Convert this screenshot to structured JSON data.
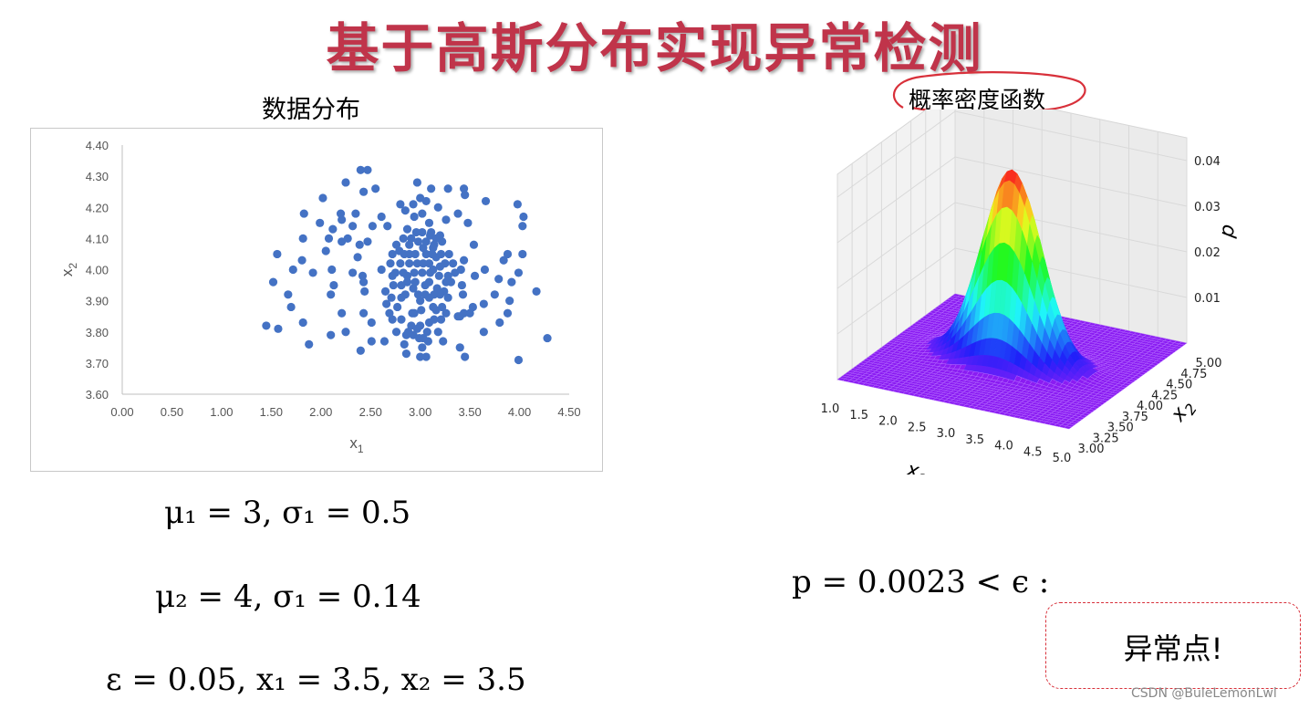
{
  "slide": {
    "title": "基于高斯分布实现异常检测",
    "scatter_caption": "数据分布",
    "pdf_caption": "概率密度函数",
    "formulas": {
      "params_1": "μ₁ = 3, σ₁ = 0.5",
      "params_2": "μ₂ = 4, σ₁ = 0.14",
      "epsilon_point": "ε = 0.05, x₁ = 3.5, x₂ = 3.5",
      "result": "p = 0.0023 < ϵ :"
    },
    "verdict": "异常点!",
    "watermark": "CSDN @BuleLemonLwl",
    "colors": {
      "title": "#c0344a",
      "points": "#4472c4",
      "verdict_border": "#d8303a"
    }
  },
  "chart_data": [
    {
      "type": "scatter",
      "title": "数据分布",
      "xlabel": "x1",
      "ylabel": "x2",
      "xlim": [
        0,
        4.5
      ],
      "ylim": [
        3.6,
        4.4
      ],
      "xticks": [
        "0.00",
        "0.50",
        "1.00",
        "1.50",
        "2.00",
        "2.50",
        "3.00",
        "3.50",
        "4.00",
        "4.50"
      ],
      "yticks": [
        "3.60",
        "3.70",
        "3.80",
        "3.90",
        "4.00",
        "4.10",
        "4.20",
        "4.30",
        "4.40"
      ],
      "grid": false,
      "series": [
        {
          "color": "#4472c4",
          "points": [
            [
              2.4,
              4.32
            ],
            [
              2.47,
              4.32
            ],
            [
              2.25,
              4.28
            ],
            [
              2.97,
              4.28
            ],
            [
              3.11,
              4.26
            ],
            [
              3.28,
              4.26
            ],
            [
              3.44,
              4.26
            ],
            [
              2.43,
              4.25
            ],
            [
              2.55,
              4.26
            ],
            [
              2.02,
              4.23
            ],
            [
              3.0,
              4.23
            ],
            [
              3.06,
              4.22
            ],
            [
              2.93,
              4.21
            ],
            [
              3.45,
              4.24
            ],
            [
              3.66,
              4.22
            ],
            [
              3.98,
              4.21
            ],
            [
              4.04,
              4.17
            ],
            [
              4.03,
              4.14
            ],
            [
              2.8,
              4.21
            ],
            [
              2.85,
              4.19
            ],
            [
              3.18,
              4.2
            ],
            [
              3.38,
              4.18
            ],
            [
              1.83,
              4.18
            ],
            [
              2.2,
              4.18
            ],
            [
              2.21,
              4.16
            ],
            [
              2.35,
              4.18
            ],
            [
              2.61,
              4.17
            ],
            [
              3.02,
              4.18
            ],
            [
              2.67,
              4.14
            ],
            [
              3.26,
              4.16
            ],
            [
              3.48,
              4.15
            ],
            [
              1.99,
              4.15
            ],
            [
              2.12,
              4.13
            ],
            [
              2.32,
              4.14
            ],
            [
              2.94,
              4.17
            ],
            [
              3.09,
              4.15
            ],
            [
              1.82,
              4.1
            ],
            [
              2.08,
              4.1
            ],
            [
              2.21,
              4.09
            ],
            [
              2.27,
              4.1
            ],
            [
              2.52,
              4.14
            ],
            [
              2.87,
              4.13
            ],
            [
              3.02,
              4.12
            ],
            [
              2.98,
              4.09
            ],
            [
              3.1,
              4.11
            ],
            [
              3.2,
              4.11
            ],
            [
              3.22,
              4.09
            ],
            [
              3.54,
              4.08
            ],
            [
              1.56,
              4.05
            ],
            [
              2.39,
              4.08
            ],
            [
              2.47,
              4.09
            ],
            [
              2.83,
              4.1
            ],
            [
              2.91,
              4.1
            ],
            [
              3.16,
              4.1
            ],
            [
              2.05,
              4.06
            ],
            [
              2.37,
              4.04
            ],
            [
              3.03,
              4.07
            ],
            [
              3.13,
              4.07
            ],
            [
              3.88,
              4.05
            ],
            [
              4.03,
              4.05
            ],
            [
              1.72,
              4.0
            ],
            [
              1.81,
              4.03
            ],
            [
              2.11,
              4.0
            ],
            [
              2.79,
              4.06
            ],
            [
              2.89,
              4.05
            ],
            [
              3.12,
              4.05
            ],
            [
              3.16,
              4.04
            ],
            [
              3.29,
              4.05
            ],
            [
              3.44,
              4.03
            ],
            [
              3.84,
              4.03
            ],
            [
              1.92,
              3.99
            ],
            [
              2.32,
              3.99
            ],
            [
              2.61,
              4.0
            ],
            [
              2.89,
              4.02
            ],
            [
              3.03,
              4.02
            ],
            [
              3.13,
              4.0
            ],
            [
              3.2,
              4.01
            ],
            [
              3.41,
              4.0
            ],
            [
              3.65,
              4.0
            ],
            [
              3.99,
              3.99
            ],
            [
              1.52,
              3.96
            ],
            [
              2.42,
              3.98
            ],
            [
              2.72,
              3.98
            ],
            [
              2.87,
              3.98
            ],
            [
              3.1,
              3.99
            ],
            [
              3.28,
              3.98
            ],
            [
              3.31,
              3.96
            ],
            [
              3.55,
              3.98
            ],
            [
              3.79,
              3.97
            ],
            [
              2.13,
              3.95
            ],
            [
              2.43,
              3.96
            ],
            [
              2.87,
              3.96
            ],
            [
              3.05,
              3.95
            ],
            [
              3.17,
              3.94
            ],
            [
              3.2,
              3.92
            ],
            [
              3.42,
              3.95
            ],
            [
              3.92,
              3.96
            ],
            [
              1.67,
              3.92
            ],
            [
              2.1,
              3.92
            ],
            [
              2.44,
              3.93
            ],
            [
              2.65,
              3.93
            ],
            [
              2.93,
              3.94
            ],
            [
              3.05,
              3.92
            ],
            [
              3.09,
              3.91
            ],
            [
              3.28,
              3.91
            ],
            [
              3.43,
              3.92
            ],
            [
              3.75,
              3.92
            ],
            [
              3.9,
              3.9
            ],
            [
              4.17,
              3.93
            ],
            [
              1.7,
              3.88
            ],
            [
              2.81,
              3.91
            ],
            [
              3.0,
              3.9
            ],
            [
              3.13,
              3.88
            ],
            [
              3.22,
              3.88
            ],
            [
              3.53,
              3.88
            ],
            [
              3.64,
              3.89
            ],
            [
              2.21,
              3.86
            ],
            [
              2.66,
              3.89
            ],
            [
              2.92,
              3.86
            ],
            [
              3.38,
              3.85
            ],
            [
              3.44,
              3.86
            ],
            [
              3.5,
              3.86
            ],
            [
              3.88,
              3.86
            ],
            [
              3.4,
              3.85
            ],
            [
              1.45,
              3.82
            ],
            [
              1.82,
              3.83
            ],
            [
              2.43,
              3.86
            ],
            [
              2.51,
              3.83
            ],
            [
              2.72,
              3.84
            ],
            [
              2.94,
              3.86
            ],
            [
              2.91,
              3.82
            ],
            [
              3.0,
              3.82
            ],
            [
              3.09,
              3.83
            ],
            [
              3.21,
              3.84
            ],
            [
              3.8,
              3.83
            ],
            [
              1.57,
              3.81
            ],
            [
              2.1,
              3.79
            ],
            [
              2.25,
              3.8
            ],
            [
              2.76,
              3.8
            ],
            [
              2.86,
              3.79
            ],
            [
              2.93,
              3.79
            ],
            [
              3.03,
              3.78
            ],
            [
              3.18,
              3.8
            ],
            [
              3.64,
              3.8
            ],
            [
              4.28,
              3.78
            ],
            [
              1.88,
              3.76
            ],
            [
              2.51,
              3.77
            ],
            [
              2.64,
              3.77
            ],
            [
              2.84,
              3.76
            ],
            [
              2.99,
              3.78
            ],
            [
              3.08,
              3.77
            ],
            [
              3.23,
              3.77
            ],
            [
              3.02,
              3.75
            ],
            [
              2.4,
              3.74
            ],
            [
              2.86,
              3.73
            ],
            [
              3.0,
              3.72
            ],
            [
              3.06,
              3.72
            ],
            [
              3.4,
              3.75
            ],
            [
              3.45,
              3.72
            ],
            [
              3.99,
              3.71
            ],
            [
              2.88,
              3.8
            ],
            [
              2.97,
              3.81
            ],
            [
              3.07,
              3.8
            ],
            [
              2.81,
              3.84
            ],
            [
              3.14,
              3.84
            ],
            [
              2.69,
              3.86
            ],
            [
              2.77,
              3.88
            ],
            [
              3.01,
              3.87
            ],
            [
              3.16,
              3.87
            ],
            [
              3.26,
              3.86
            ],
            [
              2.71,
              3.91
            ],
            [
              2.85,
              3.92
            ],
            [
              2.98,
              3.92
            ],
            [
              3.14,
              3.92
            ],
            [
              3.24,
              3.93
            ],
            [
              2.73,
              3.95
            ],
            [
              2.81,
              3.95
            ],
            [
              2.95,
              3.96
            ],
            [
              3.09,
              3.96
            ],
            [
              3.26,
              3.96
            ],
            [
              2.75,
              3.99
            ],
            [
              2.83,
              3.99
            ],
            [
              2.94,
              3.99
            ],
            [
              3.02,
              3.99
            ],
            [
              3.19,
              3.98
            ],
            [
              3.35,
              3.99
            ],
            [
              2.7,
              4.02
            ],
            [
              2.8,
              4.02
            ],
            [
              2.97,
              4.02
            ],
            [
              3.09,
              4.02
            ],
            [
              3.25,
              4.02
            ],
            [
              3.33,
              4.02
            ],
            [
              2.72,
              4.05
            ],
            [
              2.84,
              4.05
            ],
            [
              2.95,
              4.05
            ],
            [
              3.06,
              4.05
            ],
            [
              3.21,
              4.05
            ],
            [
              2.76,
              4.08
            ],
            [
              2.89,
              4.08
            ],
            [
              3.06,
              4.09
            ],
            [
              3.14,
              4.08
            ],
            [
              2.96,
              4.12
            ],
            [
              3.11,
              4.12
            ]
          ]
        }
      ]
    },
    {
      "type": "surface",
      "title": "",
      "xlabel": "x1",
      "ylabel": "x2",
      "zlabel": "p",
      "xlim": [
        1.0,
        5.0
      ],
      "ylim": [
        3.0,
        5.0
      ],
      "zlim": [
        0,
        0.045
      ],
      "xticks": [
        "1.0",
        "1.5",
        "2.0",
        "2.5",
        "3.0",
        "3.5",
        "4.0",
        "4.5",
        "5.0"
      ],
      "yticks": [
        "3.00",
        "3.25",
        "3.50",
        "3.75",
        "4.00",
        "4.25",
        "4.50",
        "4.75",
        "5.00"
      ],
      "zticks": [
        "0.01",
        "0.02",
        "0.03",
        "0.04"
      ],
      "peak": {
        "x1": 3.0,
        "x2": 4.0,
        "p": 0.042
      },
      "colormap": "rainbow",
      "grid": true
    }
  ]
}
